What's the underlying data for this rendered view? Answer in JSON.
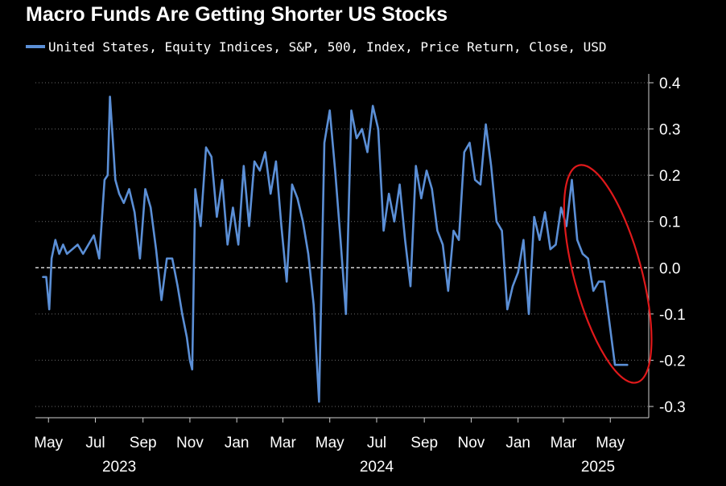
{
  "chart_data": {
    "type": "line",
    "title": "Macro Funds Are Getting Shorter US Stocks",
    "series": [
      {
        "name": "United States, Equity Indices, S&P, 500, Index, Price Return, Close, USD",
        "color": "#5b8fd6",
        "dates": [
          "2023-04-24",
          "2023-04-28",
          "2023-05-02",
          "2023-05-05",
          "2023-05-10",
          "2023-05-15",
          "2023-05-20",
          "2023-05-25",
          "2023-06-01",
          "2023-06-08",
          "2023-06-15",
          "2023-06-22",
          "2023-06-29",
          "2023-07-06",
          "2023-07-13",
          "2023-07-17",
          "2023-07-20",
          "2023-07-24",
          "2023-07-27",
          "2023-08-01",
          "2023-08-07",
          "2023-08-14",
          "2023-08-21",
          "2023-08-28",
          "2023-09-04",
          "2023-09-11",
          "2023-09-18",
          "2023-09-25",
          "2023-10-02",
          "2023-10-09",
          "2023-10-16",
          "2023-10-22",
          "2023-10-28",
          "2023-11-01",
          "2023-11-04",
          "2023-11-08",
          "2023-11-15",
          "2023-11-22",
          "2023-11-29",
          "2023-12-06",
          "2023-12-13",
          "2023-12-20",
          "2023-12-27",
          "2024-01-03",
          "2024-01-10",
          "2024-01-17",
          "2024-01-24",
          "2024-01-31",
          "2024-02-07",
          "2024-02-14",
          "2024-02-21",
          "2024-02-28",
          "2024-03-06",
          "2024-03-13",
          "2024-03-20",
          "2024-03-27",
          "2024-04-03",
          "2024-04-10",
          "2024-04-17",
          "2024-04-24",
          "2024-05-01",
          "2024-05-08",
          "2024-05-15",
          "2024-05-22",
          "2024-05-29",
          "2024-06-05",
          "2024-06-12",
          "2024-06-19",
          "2024-06-26",
          "2024-07-03",
          "2024-07-10",
          "2024-07-17",
          "2024-07-24",
          "2024-07-31",
          "2024-08-07",
          "2024-08-14",
          "2024-08-21",
          "2024-08-28",
          "2024-09-04",
          "2024-09-11",
          "2024-09-18",
          "2024-09-25",
          "2024-10-02",
          "2024-10-09",
          "2024-10-16",
          "2024-10-23",
          "2024-10-30",
          "2024-11-06",
          "2024-11-13",
          "2024-11-20",
          "2024-11-27",
          "2024-12-04",
          "2024-12-11",
          "2024-12-18",
          "2024-12-25",
          "2025-01-01",
          "2025-01-08",
          "2025-01-15",
          "2025-01-22",
          "2025-01-29",
          "2025-02-05",
          "2025-02-12",
          "2025-02-19",
          "2025-02-26",
          "2025-03-05",
          "2025-03-12",
          "2025-03-19",
          "2025-03-26",
          "2025-04-02",
          "2025-04-09",
          "2025-04-16",
          "2025-04-23",
          "2025-04-30",
          "2025-05-07",
          "2025-05-14",
          "2025-05-21",
          "2025-05-23"
        ],
        "values": [
          -0.02,
          -0.02,
          -0.09,
          0.02,
          0.06,
          0.03,
          0.05,
          0.03,
          0.04,
          0.05,
          0.03,
          0.05,
          0.07,
          0.02,
          0.19,
          0.2,
          0.37,
          0.27,
          0.19,
          0.16,
          0.14,
          0.17,
          0.12,
          0.02,
          0.17,
          0.13,
          0.04,
          -0.07,
          0.02,
          0.02,
          -0.04,
          -0.1,
          -0.15,
          -0.2,
          -0.22,
          0.17,
          0.09,
          0.26,
          0.24,
          0.11,
          0.19,
          0.05,
          0.13,
          0.05,
          0.22,
          0.09,
          0.23,
          0.21,
          0.25,
          0.16,
          0.23,
          0.09,
          -0.03,
          0.18,
          0.15,
          0.1,
          0.03,
          -0.08,
          -0.29,
          0.27,
          0.34,
          0.21,
          0.06,
          -0.1,
          0.34,
          0.28,
          0.3,
          0.25,
          0.35,
          0.3,
          0.08,
          0.16,
          0.1,
          0.18,
          0.06,
          -0.04,
          0.22,
          0.15,
          0.21,
          0.17,
          0.08,
          0.05,
          -0.05,
          0.08,
          0.06,
          0.25,
          0.27,
          0.19,
          0.18,
          0.31,
          0.22,
          0.1,
          0.08,
          -0.09,
          -0.04,
          -0.01,
          0.06,
          -0.1,
          0.11,
          0.06,
          0.12,
          0.04,
          0.05,
          0.13,
          0.09,
          0.19,
          0.06,
          0.03,
          0.02,
          -0.05,
          -0.03,
          -0.03,
          -0.12,
          -0.21,
          -0.21,
          -0.21,
          -0.21
        ]
      }
    ],
    "ylim": [
      -0.3,
      0.4
    ],
    "yticks": [
      "0.4",
      "0.3",
      "0.2",
      "0.1",
      "0.0",
      "-0.1",
      "-0.2",
      "-0.3"
    ],
    "ytick_values": [
      0.4,
      0.3,
      0.2,
      0.1,
      0.0,
      -0.1,
      -0.2,
      -0.3
    ],
    "xlim": [
      "2023-04-14",
      "2025-06-20"
    ],
    "xticks": [
      {
        "label": "May",
        "date": "2023-05-01"
      },
      {
        "label": "Jul",
        "date": "2023-07-01"
      },
      {
        "label": "Sep",
        "date": "2023-09-01"
      },
      {
        "label": "Nov",
        "date": "2023-11-01"
      },
      {
        "label": "Jan",
        "date": "2024-01-01"
      },
      {
        "label": "Mar",
        "date": "2024-03-01"
      },
      {
        "label": "May",
        "date": "2024-05-01"
      },
      {
        "label": "Jul",
        "date": "2024-07-01"
      },
      {
        "label": "Sep",
        "date": "2024-09-01"
      },
      {
        "label": "Nov",
        "date": "2024-11-01"
      },
      {
        "label": "Jan",
        "date": "2025-01-01"
      },
      {
        "label": "Mar",
        "date": "2025-03-01"
      },
      {
        "label": "May",
        "date": "2025-05-01"
      }
    ],
    "year_labels": [
      {
        "label": "2023",
        "date": "2023-08-01"
      },
      {
        "label": "2024",
        "date": "2024-07-01"
      },
      {
        "label": "2025",
        "date": "2025-04-15"
      }
    ],
    "grid": "horizontal dotted",
    "zero_line": "white dashed",
    "legend_position": "top-left",
    "y_axis_side": "right",
    "annotation": {
      "type": "ellipse",
      "color": "#e0191b",
      "around_dates": [
        "2025-02-15",
        "2025-05-23"
      ]
    }
  }
}
